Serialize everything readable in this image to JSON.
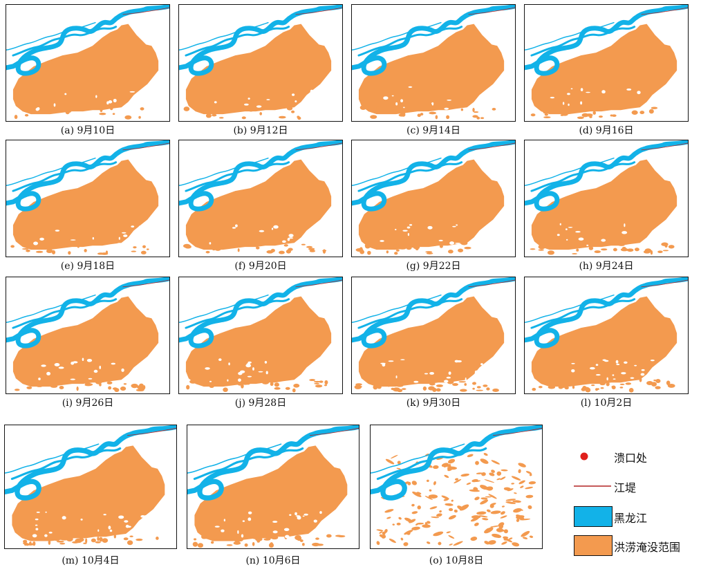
{
  "colors": {
    "river": "#12b2e8",
    "flood": "#f39a4f",
    "levee": "#b22222",
    "breach": "#e0201c",
    "frame": "#111111"
  },
  "panels": [
    {
      "caption": "(a)  9月10日",
      "state": "full"
    },
    {
      "caption": "(b)  9月12日",
      "state": "full"
    },
    {
      "caption": "(c)  9月14日",
      "state": "full"
    },
    {
      "caption": "(d)  9月16日",
      "state": "full"
    },
    {
      "caption": "(e)  9月18日",
      "state": "full"
    },
    {
      "caption": "(f)  9月20日",
      "state": "full"
    },
    {
      "caption": "(g)  9月22日",
      "state": "full"
    },
    {
      "caption": "(h)  9月24日",
      "state": "full"
    },
    {
      "caption": "(i)  9月26日",
      "state": "full"
    },
    {
      "caption": "(j)  9月28日",
      "state": "full"
    },
    {
      "caption": "(k)  9月30日",
      "state": "full"
    },
    {
      "caption": "(l)  10月2日",
      "state": "full"
    },
    {
      "caption": "(m)  10月4日",
      "state": "full"
    },
    {
      "caption": "(n)  10月6日",
      "state": "full"
    },
    {
      "caption": "(o)  10月8日",
      "state": "receding"
    }
  ],
  "legend": [
    {
      "label": "溃口处",
      "symbol": "breach-point"
    },
    {
      "label": "江堤",
      "symbol": "levee-line"
    },
    {
      "label": "黑龙江",
      "symbol": "river-swatch"
    },
    {
      "label": "洪涝淹没范围",
      "symbol": "flood-swatch"
    }
  ]
}
